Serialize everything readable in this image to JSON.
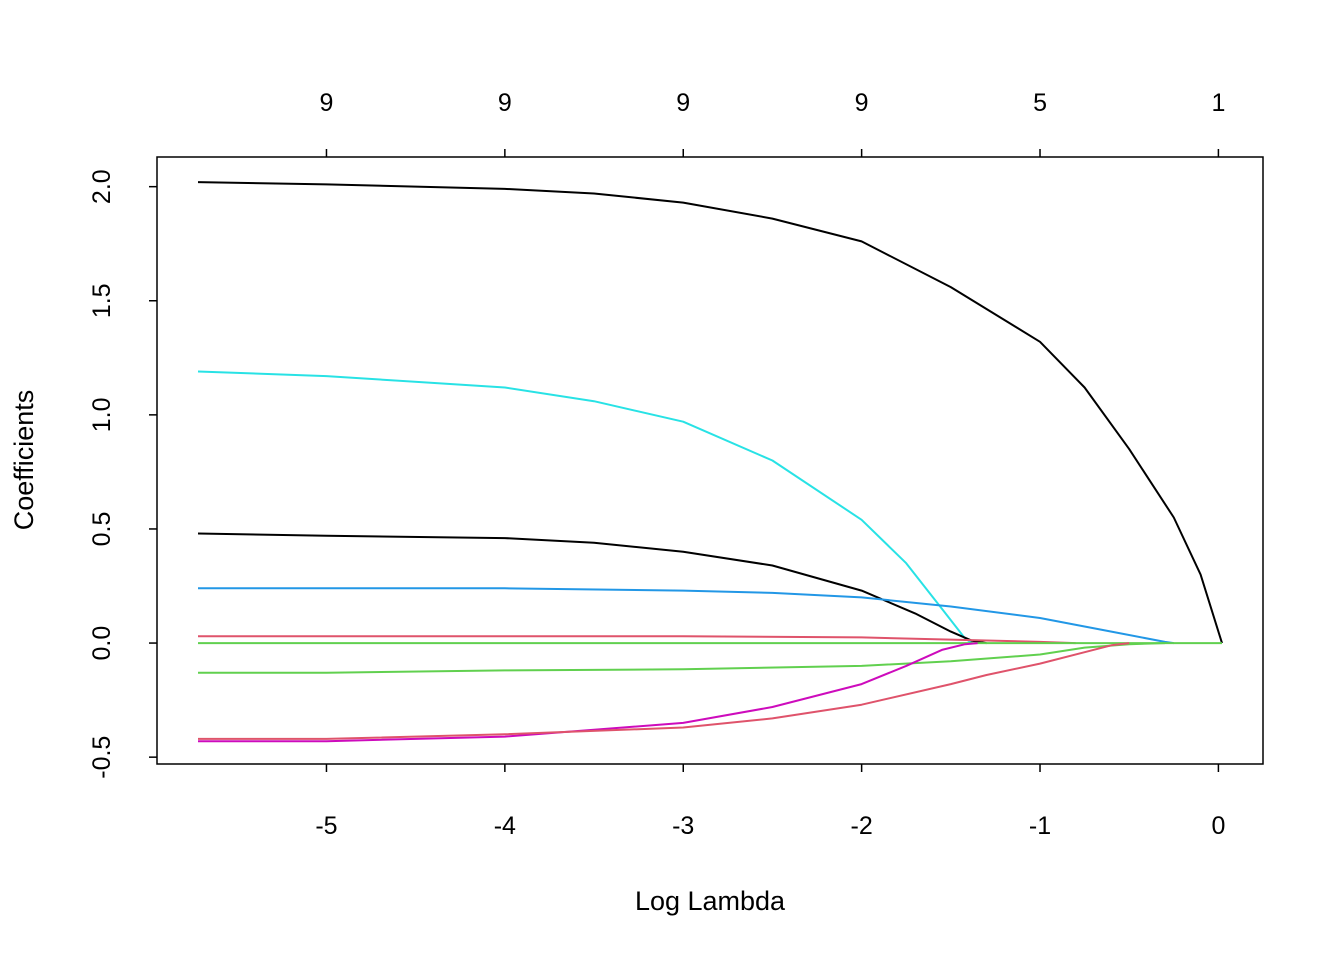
{
  "chart_data": {
    "type": "line",
    "title": "",
    "xlabel": "Log Lambda",
    "ylabel": "Coefficients",
    "xlim": [
      -5.95,
      0.25
    ],
    "ylim": [
      -0.53,
      2.13
    ],
    "x_ticks": [
      -5,
      -4,
      -3,
      -2,
      -1,
      0
    ],
    "x_tick_labels": [
      "-5",
      "-4",
      "-3",
      "-2",
      "-1",
      "0"
    ],
    "y_ticks": [
      -0.5,
      0.0,
      0.5,
      1.0,
      1.5,
      2.0
    ],
    "y_tick_labels": [
      "-0.5",
      "0.0",
      "0.5",
      "1.0",
      "1.5",
      "2.0"
    ],
    "top_ticks": [
      -5,
      -4,
      -3,
      -2,
      -1,
      0
    ],
    "top_tick_labels": [
      "9",
      "9",
      "9",
      "9",
      "5",
      "1"
    ],
    "grid": false,
    "legend": "none",
    "series": [
      {
        "color": "#000000",
        "x": [
          -5.72,
          -5,
          -4,
          -3.5,
          -3,
          -2.5,
          -2,
          -1.5,
          -1,
          -0.75,
          -0.5,
          -0.25,
          -0.1,
          0.02
        ],
        "y": [
          2.02,
          2.01,
          1.99,
          1.97,
          1.93,
          1.86,
          1.76,
          1.56,
          1.32,
          1.12,
          0.85,
          0.55,
          0.3,
          0.0
        ]
      },
      {
        "color": "#28E2E5",
        "x": [
          -5.72,
          -5,
          -4,
          -3.5,
          -3,
          -2.5,
          -2,
          -1.75,
          -1.55,
          -1.42,
          -1.38
        ],
        "y": [
          1.19,
          1.17,
          1.12,
          1.06,
          0.97,
          0.8,
          0.54,
          0.35,
          0.15,
          0.02,
          0.0
        ]
      },
      {
        "color": "#000000",
        "x": [
          -5.72,
          -5,
          -4,
          -3.5,
          -3,
          -2.5,
          -2,
          -1.7,
          -1.5,
          -1.38,
          -1.3
        ],
        "y": [
          0.48,
          0.47,
          0.46,
          0.44,
          0.4,
          0.34,
          0.23,
          0.13,
          0.05,
          0.01,
          0.0
        ]
      },
      {
        "color": "#2297E6",
        "x": [
          -5.72,
          -5,
          -4,
          -3,
          -2.5,
          -2,
          -1.5,
          -1,
          -0.6,
          -0.3,
          -0.25
        ],
        "y": [
          0.24,
          0.24,
          0.24,
          0.23,
          0.22,
          0.2,
          0.16,
          0.11,
          0.05,
          0.005,
          0.0
        ]
      },
      {
        "color": "#DF536B",
        "x": [
          -5.72,
          -5,
          -4,
          -3,
          -2,
          -1.5,
          -1,
          -0.8
        ],
        "y": [
          0.03,
          0.03,
          0.03,
          0.03,
          0.025,
          0.015,
          0.005,
          0.0
        ]
      },
      {
        "color": "#61D04F",
        "x": [
          -5.72,
          0.02
        ],
        "y": [
          0.0,
          0.0
        ]
      },
      {
        "color": "#61D04F",
        "x": [
          -5.72,
          -5,
          -4,
          -3,
          -2,
          -1.5,
          -1,
          -0.75,
          -0.5,
          -0.3
        ],
        "y": [
          -0.13,
          -0.13,
          -0.12,
          -0.115,
          -0.1,
          -0.08,
          -0.05,
          -0.02,
          -0.005,
          0.0
        ]
      },
      {
        "color": "#CD0BBC",
        "x": [
          -5.72,
          -5,
          -4,
          -3.5,
          -3,
          -2.5,
          -2,
          -1.75,
          -1.55,
          -1.42,
          -1.35
        ],
        "y": [
          -0.43,
          -0.43,
          -0.41,
          -0.38,
          -0.35,
          -0.28,
          -0.18,
          -0.1,
          -0.03,
          -0.005,
          0.0
        ]
      },
      {
        "color": "#DF536B",
        "x": [
          -5.72,
          -5,
          -4,
          -3,
          -2.5,
          -2,
          -1.5,
          -1.3,
          -1,
          -0.75,
          -0.6,
          -0.5
        ],
        "y": [
          -0.42,
          -0.42,
          -0.4,
          -0.37,
          -0.33,
          -0.27,
          -0.18,
          -0.14,
          -0.09,
          -0.04,
          -0.01,
          0.0
        ]
      }
    ]
  }
}
